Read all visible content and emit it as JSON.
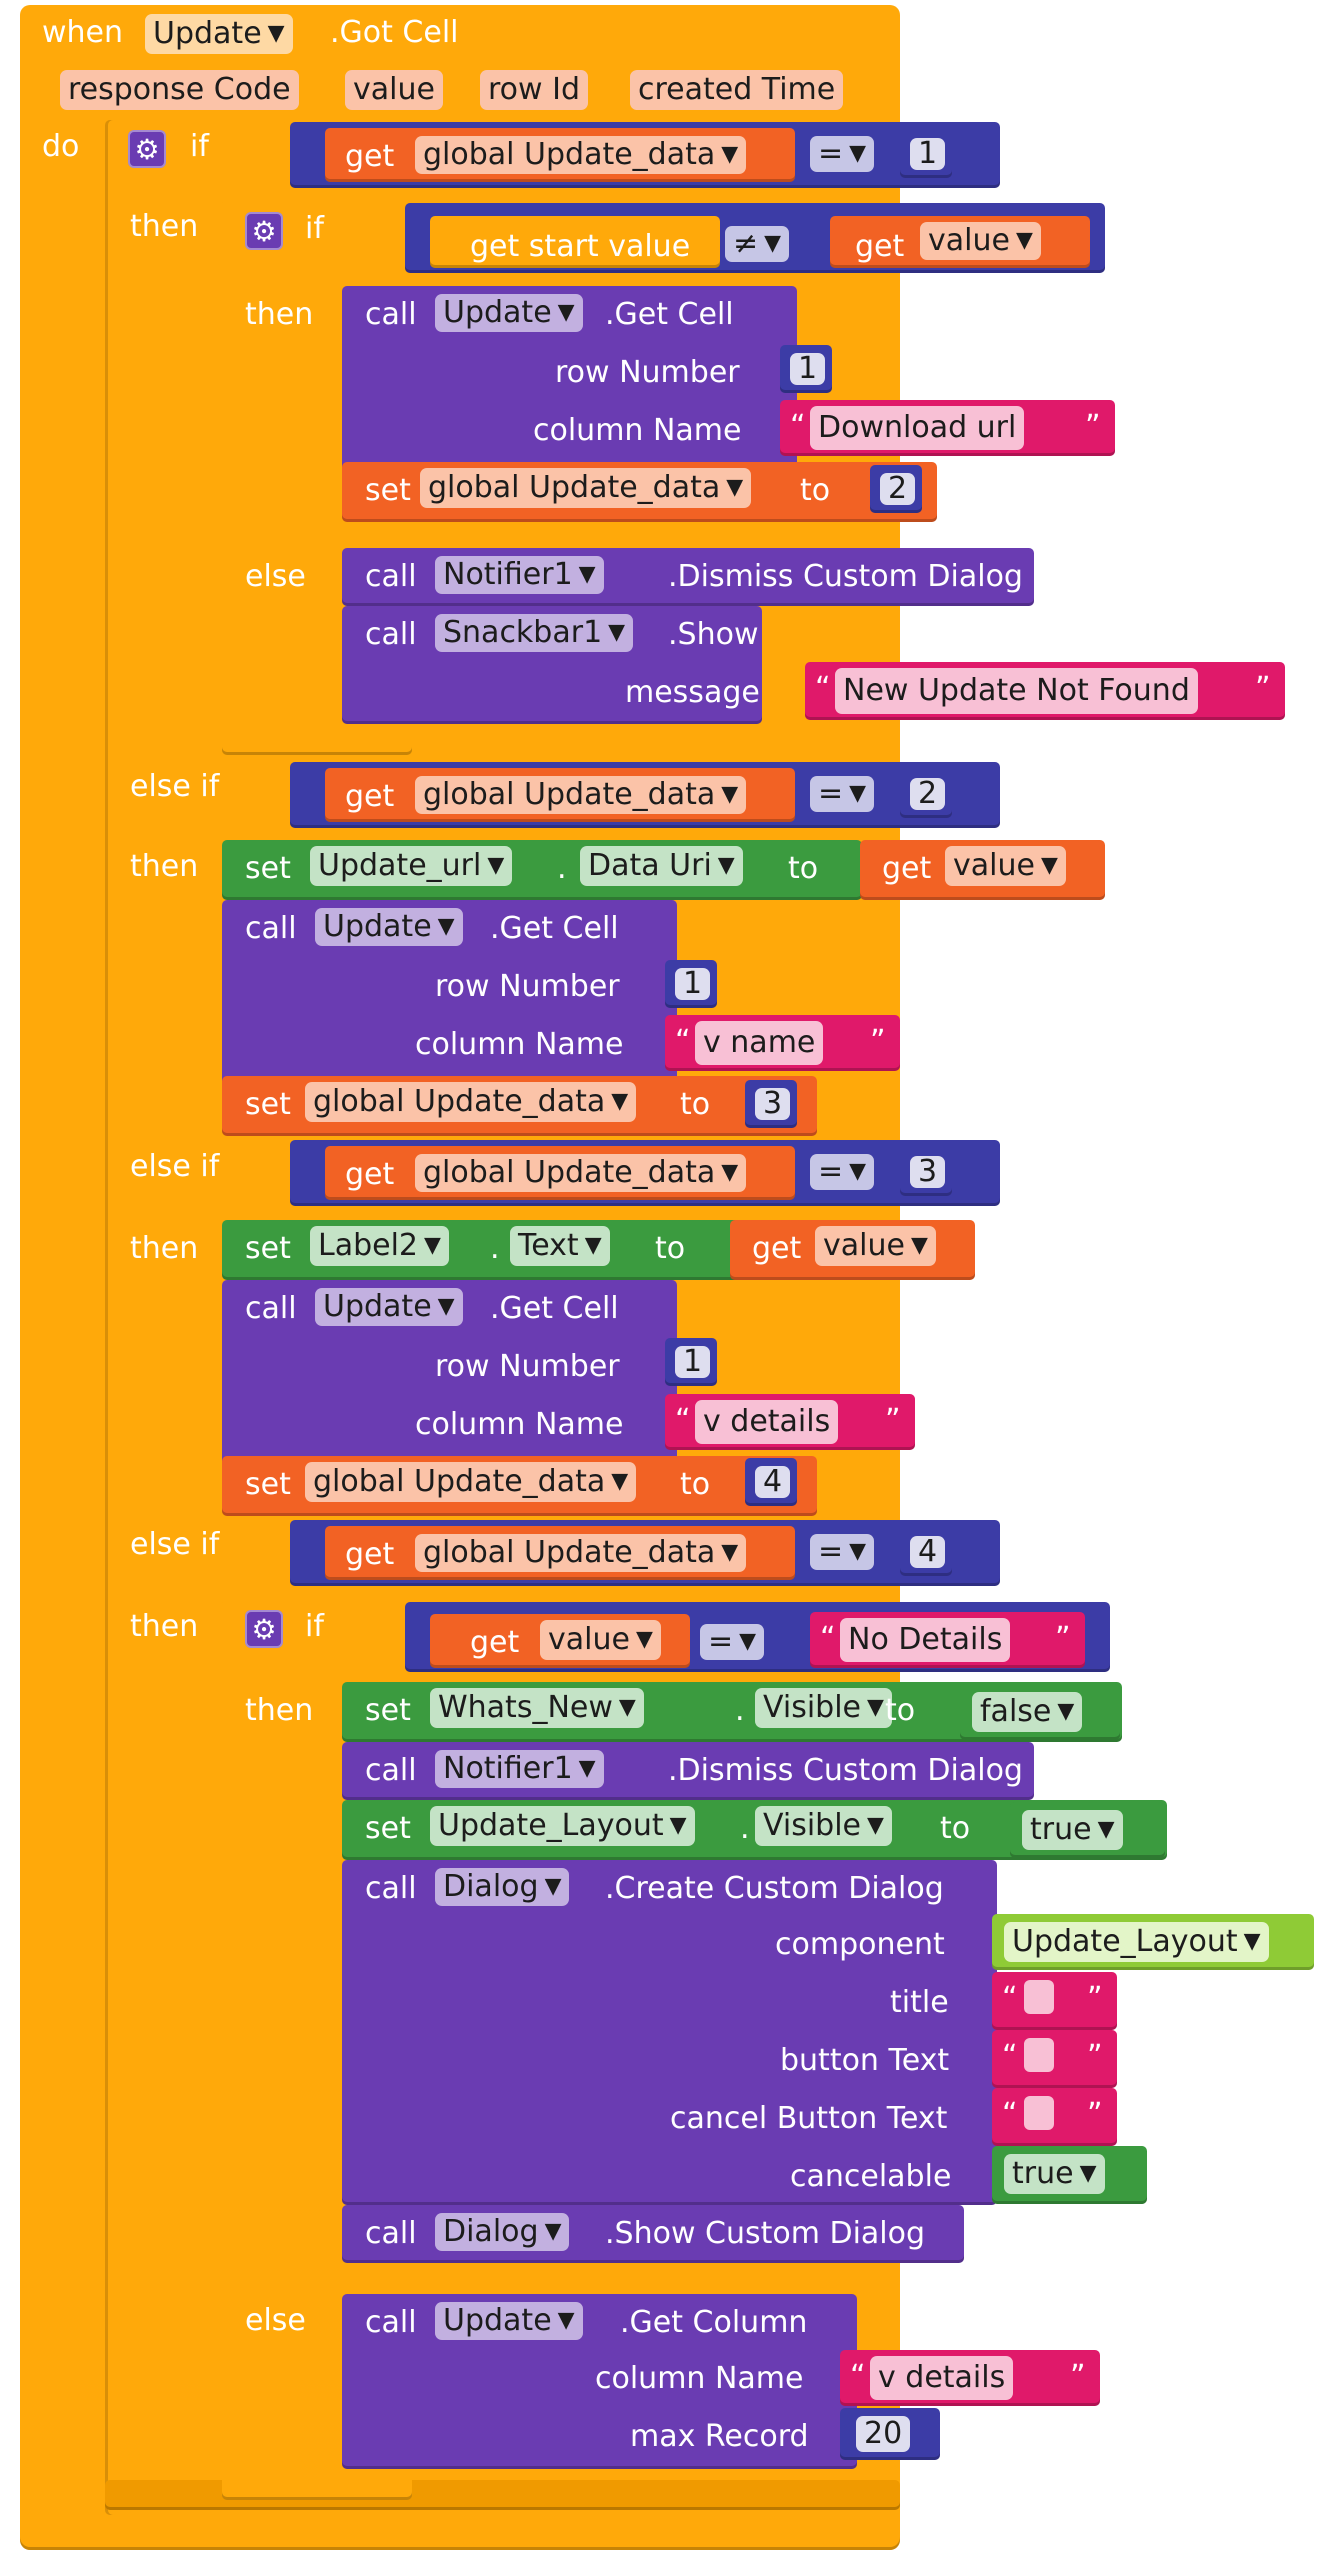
{
  "event": {
    "when": "when",
    "component": "Update",
    "event_name": ".Got Cell",
    "do": "do",
    "params": [
      "response Code",
      "value",
      "row Id",
      "created Time"
    ]
  },
  "kw": {
    "if": "if",
    "then": "then",
    "else": "else",
    "else_if": "else if",
    "get": "get",
    "set": "set",
    "call": "call",
    "to": "to",
    "dot": "."
  },
  "ops": {
    "eq": "=",
    "neq": "≠"
  },
  "vars": {
    "update_data": "global Update_data",
    "value": "value",
    "start_value": "get start value"
  },
  "numbers": {
    "n1": "1",
    "n2": "2",
    "n3": "3",
    "n4": "4",
    "n20": "20"
  },
  "components": {
    "update": "Update",
    "notifier": "Notifier1",
    "snackbar": "Snackbar1",
    "update_url": "Update_url",
    "label2": "Label2",
    "whats_new": "Whats_New",
    "update_layout": "Update_Layout",
    "dialog": "Dialog"
  },
  "props": {
    "data_uri": "Data Uri",
    "text": "Text",
    "visible": "Visible"
  },
  "methods": {
    "get_cell": ".Get Cell",
    "dismiss": ".Dismiss Custom Dialog",
    "show": ".Show",
    "create_dialog": ".Create Custom Dialog",
    "show_dialog": ".Show Custom Dialog",
    "get_column": ".Get Column"
  },
  "args": {
    "row_number": "row Number",
    "column_name": "column Name",
    "message": "message",
    "component": "component",
    "title": "title",
    "button_text": "button Text",
    "cancel_button_text": "cancel Button Text",
    "cancelable": "cancelable",
    "max_record": "max Record"
  },
  "strings": {
    "download_url": "Download url",
    "not_found": "New Update Not Found",
    "v_name": "v name",
    "v_details": "v details",
    "no_details": "No Details",
    "open_quote": "“",
    "close_quote": "”"
  },
  "bools": {
    "false": "false",
    "true": "true"
  },
  "icons": {
    "gear": "gear-icon",
    "dropdown": "dropdown-arrow-icon"
  },
  "colors": {
    "control": "#ffa90a",
    "procedure": "#6a3cb2",
    "variable": "#f26224",
    "math": "#3c3ca6",
    "component_setter": "#3b9b3f",
    "text": "#e0196a",
    "component_block": "#8fcb36"
  }
}
